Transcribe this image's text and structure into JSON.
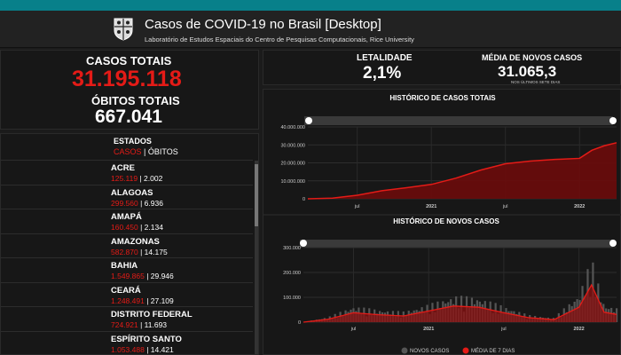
{
  "header": {
    "title": "Casos de COVID-19 no Brasil [Desktop]",
    "subtitle": "Laboratório de Estudos Espaciais do Centro de Pesquisas Computacionais, Rice University"
  },
  "totals": {
    "cases_label": "CASOS TOTAIS",
    "cases_value": "31.195.118",
    "deaths_label": "ÓBITOS TOTAIS",
    "deaths_value": "667.041"
  },
  "rates": {
    "lethality_label": "LETALIDADE",
    "lethality_value": "2,1%",
    "avg_label": "MÉDIA DE NOVOS CASOS",
    "avg_value": "31.065,3",
    "avg_note": "NOS ÚLTIMOS SETE DIAS"
  },
  "states": {
    "heading": "ESTADOS",
    "tab_cases": "CASOS",
    "tab_sep": " | ",
    "tab_deaths": "ÓBITOS",
    "items": [
      {
        "name": "ACRE",
        "cases": "125.119",
        "deaths": "2.002"
      },
      {
        "name": "ALAGOAS",
        "cases": "299.560",
        "deaths": "6.936"
      },
      {
        "name": "AMAPÁ",
        "cases": "160.450",
        "deaths": "2.134"
      },
      {
        "name": "AMAZONAS",
        "cases": "582.870",
        "deaths": "14.175"
      },
      {
        "name": "BAHIA",
        "cases": "1.549.865",
        "deaths": "29.946"
      },
      {
        "name": "CEARÁ",
        "cases": "1.248.491",
        "deaths": "27.109"
      },
      {
        "name": "DISTRITO FEDERAL",
        "cases": "724.921",
        "deaths": "11.693"
      },
      {
        "name": "ESPÍRITO SANTO",
        "cases": "1.053.488",
        "deaths": "14.421"
      }
    ]
  },
  "chart_data": [
    {
      "type": "area",
      "title": "HISTÓRICO DE CASOS TOTAIS",
      "x_tick_labels": [
        "jul",
        "2021",
        "jul",
        "2022"
      ],
      "y_tick_labels": [
        "0",
        "10.000.000",
        "20.000.000",
        "30.000.000",
        "40.000.000"
      ],
      "ylim": [
        0,
        40000000
      ],
      "x": [
        "2020-03",
        "2020-05",
        "2020-07",
        "2020-09",
        "2020-11",
        "2021-01",
        "2021-03",
        "2021-05",
        "2021-07",
        "2021-09",
        "2021-11",
        "2022-01",
        "2022-02",
        "2022-03",
        "2022-04"
      ],
      "values": [
        0,
        400000,
        2000000,
        4500000,
        6200000,
        8000000,
        11500000,
        16000000,
        19500000,
        21000000,
        21900000,
        22500000,
        27000000,
        29500000,
        31195118
      ],
      "color": "#e41b17"
    },
    {
      "type": "bar",
      "title": "HISTÓRICO DE NOVOS CASOS",
      "x_tick_labels": [
        "jul",
        "2021",
        "jul",
        "2022"
      ],
      "y_tick_labels": [
        "0",
        "100.000",
        "200.000",
        "300.000"
      ],
      "ylim": [
        0,
        300000
      ],
      "series": [
        {
          "name": "NOVOS CASOS",
          "color": "#555555"
        },
        {
          "name": "MÉDIA DE 7 DIAS",
          "color": "#e41b17"
        }
      ],
      "x": [
        "2020-03",
        "2020-05",
        "2020-07",
        "2020-09",
        "2020-11",
        "2021-01",
        "2021-03",
        "2021-05",
        "2021-07",
        "2021-09",
        "2021-11",
        "2022-01",
        "2022-02",
        "2022-03",
        "2022-04"
      ],
      "new_cases": [
        0,
        15000,
        45000,
        35000,
        30000,
        50000,
        75000,
        70000,
        45000,
        20000,
        12000,
        80000,
        180000,
        50000,
        40000
      ],
      "avg7": [
        0,
        12000,
        38000,
        30000,
        25000,
        45000,
        65000,
        60000,
        38000,
        18000,
        10000,
        60000,
        150000,
        40000,
        31065
      ]
    }
  ],
  "icons": {
    "logo": "rice-university-shield-icon",
    "scroll_marker": "scroll-handle-icon"
  },
  "colors": {
    "accent_bar": "#08808a",
    "red": "#e41b17",
    "bg": "#1b1b1b"
  }
}
